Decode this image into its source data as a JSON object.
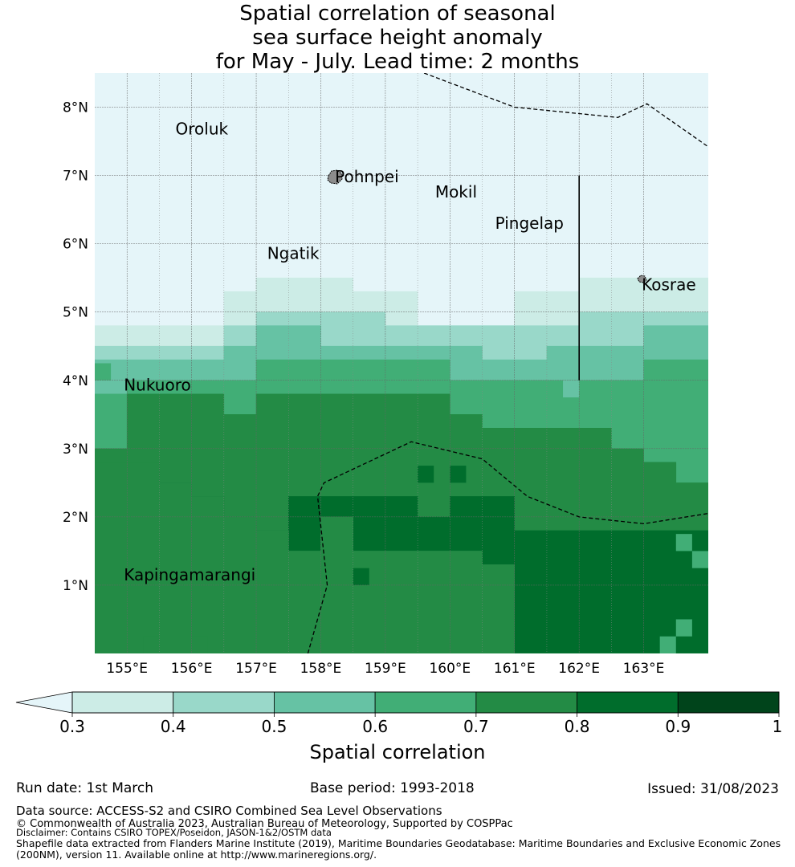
{
  "title": {
    "line1": "Spatial correlation of seasonal",
    "line2": "sea surface height anomaly",
    "line3": "for May - July. Lead time: 2 months"
  },
  "map": {
    "lat_labels": [
      "8°N",
      "7°N",
      "6°N",
      "5°N",
      "4°N",
      "3°N",
      "2°N",
      "1°N"
    ],
    "lon_labels": [
      "155°E",
      "156°E",
      "157°E",
      "158°E",
      "159°E",
      "160°E",
      "161°E",
      "162°E",
      "163°E"
    ],
    "extent": {
      "lon_min": 154.5,
      "lon_max": 164.0,
      "lat_min": 0.0,
      "lat_max": 8.5
    },
    "grid_resolution_deg": 0.25,
    "places": [
      {
        "name": "Oroluk",
        "lon": 155.75,
        "lat": 7.6
      },
      {
        "name": "Pohnpei",
        "lon": 158.22,
        "lat": 6.9
      },
      {
        "name": "Mokil",
        "lon": 159.77,
        "lat": 6.68
      },
      {
        "name": "Pingelap",
        "lon": 160.7,
        "lat": 6.22
      },
      {
        "name": "Ngatik",
        "lon": 157.17,
        "lat": 5.78
      },
      {
        "name": "Kosrae",
        "lon": 162.97,
        "lat": 5.32
      },
      {
        "name": "Nukuoro",
        "lon": 154.95,
        "lat": 3.85
      },
      {
        "name": "Kapingamarangi",
        "lon": 154.95,
        "lat": 1.07
      }
    ],
    "band_boundaries": {
      "lons": [
        154.5,
        155.0,
        155.5,
        156.0,
        156.5,
        157.0,
        157.5,
        158.0,
        158.5,
        159.0,
        159.5,
        160.0,
        160.5,
        161.0,
        161.5,
        162.0,
        162.5,
        163.0,
        163.5,
        164.0
      ],
      "lat_03": [
        4.8,
        4.8,
        4.8,
        4.8,
        5.3,
        5.5,
        5.5,
        5.5,
        5.3,
        5.3,
        4.8,
        4.8,
        4.8,
        5.3,
        5.3,
        5.5,
        5.5,
        5.5,
        5.5,
        5.5
      ],
      "lat_04": [
        4.5,
        4.5,
        4.5,
        4.5,
        4.8,
        5.0,
        5.0,
        5.0,
        5.0,
        4.8,
        4.8,
        4.8,
        4.8,
        4.8,
        4.8,
        5.0,
        5.0,
        5.0,
        5.0,
        5.0
      ],
      "lat_05": [
        4.3,
        4.3,
        4.3,
        4.3,
        4.5,
        4.8,
        4.8,
        4.5,
        4.5,
        4.5,
        4.5,
        4.5,
        4.3,
        4.3,
        4.5,
        4.5,
        4.5,
        4.8,
        4.8,
        4.8
      ],
      "lat_06": [
        3.8,
        4.0,
        4.0,
        4.0,
        4.0,
        4.3,
        4.3,
        4.3,
        4.3,
        4.3,
        4.3,
        4.0,
        4.0,
        4.0,
        4.0,
        4.0,
        4.0,
        4.3,
        4.3,
        4.3
      ],
      "lat_07": [
        3.0,
        3.8,
        3.8,
        3.8,
        3.5,
        3.8,
        3.8,
        3.8,
        3.8,
        3.8,
        3.8,
        3.5,
        3.3,
        3.3,
        3.3,
        3.3,
        3.0,
        2.8,
        2.5,
        2.3
      ],
      "lat_08": [
        2.8,
        2.8,
        2.5,
        2.3,
        2.0,
        1.8,
        2.3,
        2.3,
        2.3,
        2.3,
        2.0,
        2.3,
        2.3,
        1.8,
        1.8,
        1.8,
        1.8,
        1.8,
        1.8,
        1.8
      ],
      "lat_08b": [
        2.8,
        2.8,
        2.5,
        2.3,
        2.0,
        1.8,
        1.5,
        2.0,
        1.5,
        1.5,
        1.5,
        1.5,
        1.3,
        0.0,
        0.0,
        0.0,
        0.0,
        0.0,
        0.0,
        0.0
      ]
    },
    "eez_lines": [
      {
        "style": "dashed",
        "points": [
          [
            159.6,
            8.5
          ],
          [
            161.0,
            8.0
          ],
          [
            162.6,
            7.85
          ],
          [
            163.05,
            8.05
          ],
          [
            164.0,
            7.42
          ]
        ]
      },
      {
        "style": "dashed",
        "points": [
          [
            157.8,
            0.0
          ],
          [
            158.1,
            1.0
          ],
          [
            157.95,
            2.3
          ],
          [
            158.05,
            2.5
          ],
          [
            159.4,
            3.1
          ],
          [
            160.5,
            2.85
          ],
          [
            161.2,
            2.3
          ],
          [
            162.0,
            2.0
          ],
          [
            163.0,
            1.9
          ],
          [
            164.0,
            2.05
          ]
        ]
      },
      {
        "style": "solid",
        "points": [
          [
            162.0,
            7.0
          ],
          [
            162.0,
            4.0
          ]
        ]
      }
    ]
  },
  "colorbar": {
    "ticks": [
      "0.3",
      "0.4",
      "0.5",
      "0.6",
      "0.7",
      "0.8",
      "0.9",
      "1"
    ],
    "label": "Spatial correlation",
    "under_color": "#e5f5f9",
    "colors": [
      "#ccece6",
      "#99d8c9",
      "#66c2a4",
      "#41ae76",
      "#238b45",
      "#006d2c",
      "#00441b"
    ]
  },
  "footer": {
    "run_date": "Run date: 1st March",
    "base_period": "Base period: 1993-2018",
    "issued": "Issued: 31/08/2023",
    "data_source": "Data source: ACCESS-S2 and CSIRO Combined Sea Level Observations",
    "copyright": "© Commonwealth of Australia 2023, Australian Bureau of Meteorology, Supported by COSPPac",
    "disclaimer": "Disclaimer: Contains CSIRO TOPEX/Poseidon, JASON-1&2/OSTM data",
    "shapefile_1": "Shapefile data extracted from Flanders Marine Institute (2019), Maritime Boundaries Geodatabase: Maritime Boundaries and Exclusive Economic Zones",
    "shapefile_2": "(200NM), version 11. Available online at http://www.marineregions.org/."
  }
}
